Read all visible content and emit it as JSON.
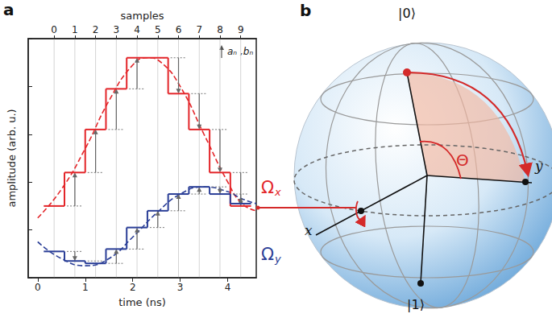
{
  "chart_data": {
    "type": "step",
    "xlabel": "time (ns)",
    "x2label": "samples",
    "ylabel": "amplitude (arb. u.)",
    "xlim": [
      -0.2,
      4.6
    ],
    "xticks": [
      0,
      1,
      2,
      3,
      4
    ],
    "x2lim": [
      -1.25,
      9.75
    ],
    "x2ticks": [
      0,
      1,
      2,
      3,
      4,
      5,
      6,
      7,
      8,
      9
    ],
    "ylim": [
      0,
      10
    ],
    "yticks": [
      0,
      2,
      4,
      6,
      8,
      10
    ],
    "tick_labels": "x",
    "grid": true,
    "annotation": "aₙ ,bₙ",
    "series": [
      {
        "name": "Ωx",
        "type": "step",
        "axis": "x2",
        "color": "#e3262a",
        "values": [
          3.0,
          4.4,
          6.2,
          7.9,
          9.2,
          9.2,
          7.7,
          6.2,
          4.4,
          3.0
        ]
      },
      {
        "name": "Ωy",
        "type": "step",
        "axis": "x2",
        "color": "#2b3f97",
        "values": [
          1.1,
          0.7,
          0.6,
          1.2,
          2.1,
          2.8,
          3.5,
          3.8,
          3.5,
          3.1
        ]
      },
      {
        "type": "line",
        "line_style": "dashed",
        "color": "#e3262a",
        "x": [
          0,
          0.5,
          1.0,
          1.5,
          2.0,
          2.3,
          2.6,
          3.0,
          3.5,
          4.0,
          4.3,
          4.6
        ],
        "values": [
          2.5,
          3.7,
          5.4,
          7.4,
          8.9,
          9.2,
          9.0,
          8.0,
          6.0,
          4.0,
          3.1,
          2.8
        ]
      },
      {
        "type": "line",
        "line_style": "dashed",
        "color": "#2b3f97",
        "x": [
          0,
          0.5,
          1.0,
          1.5,
          2.0,
          2.5,
          3.0,
          3.5,
          4.0,
          4.3,
          4.6
        ],
        "values": [
          1.5,
          0.8,
          0.5,
          0.8,
          1.7,
          2.7,
          3.5,
          3.8,
          3.6,
          3.3,
          3.1
        ]
      }
    ]
  },
  "panels": [
    "a",
    "b"
  ],
  "bloch": {
    "north": "|0⟩",
    "south": "|1⟩",
    "x_axis": "x",
    "y_axis": "y",
    "angle": "Θ"
  }
}
